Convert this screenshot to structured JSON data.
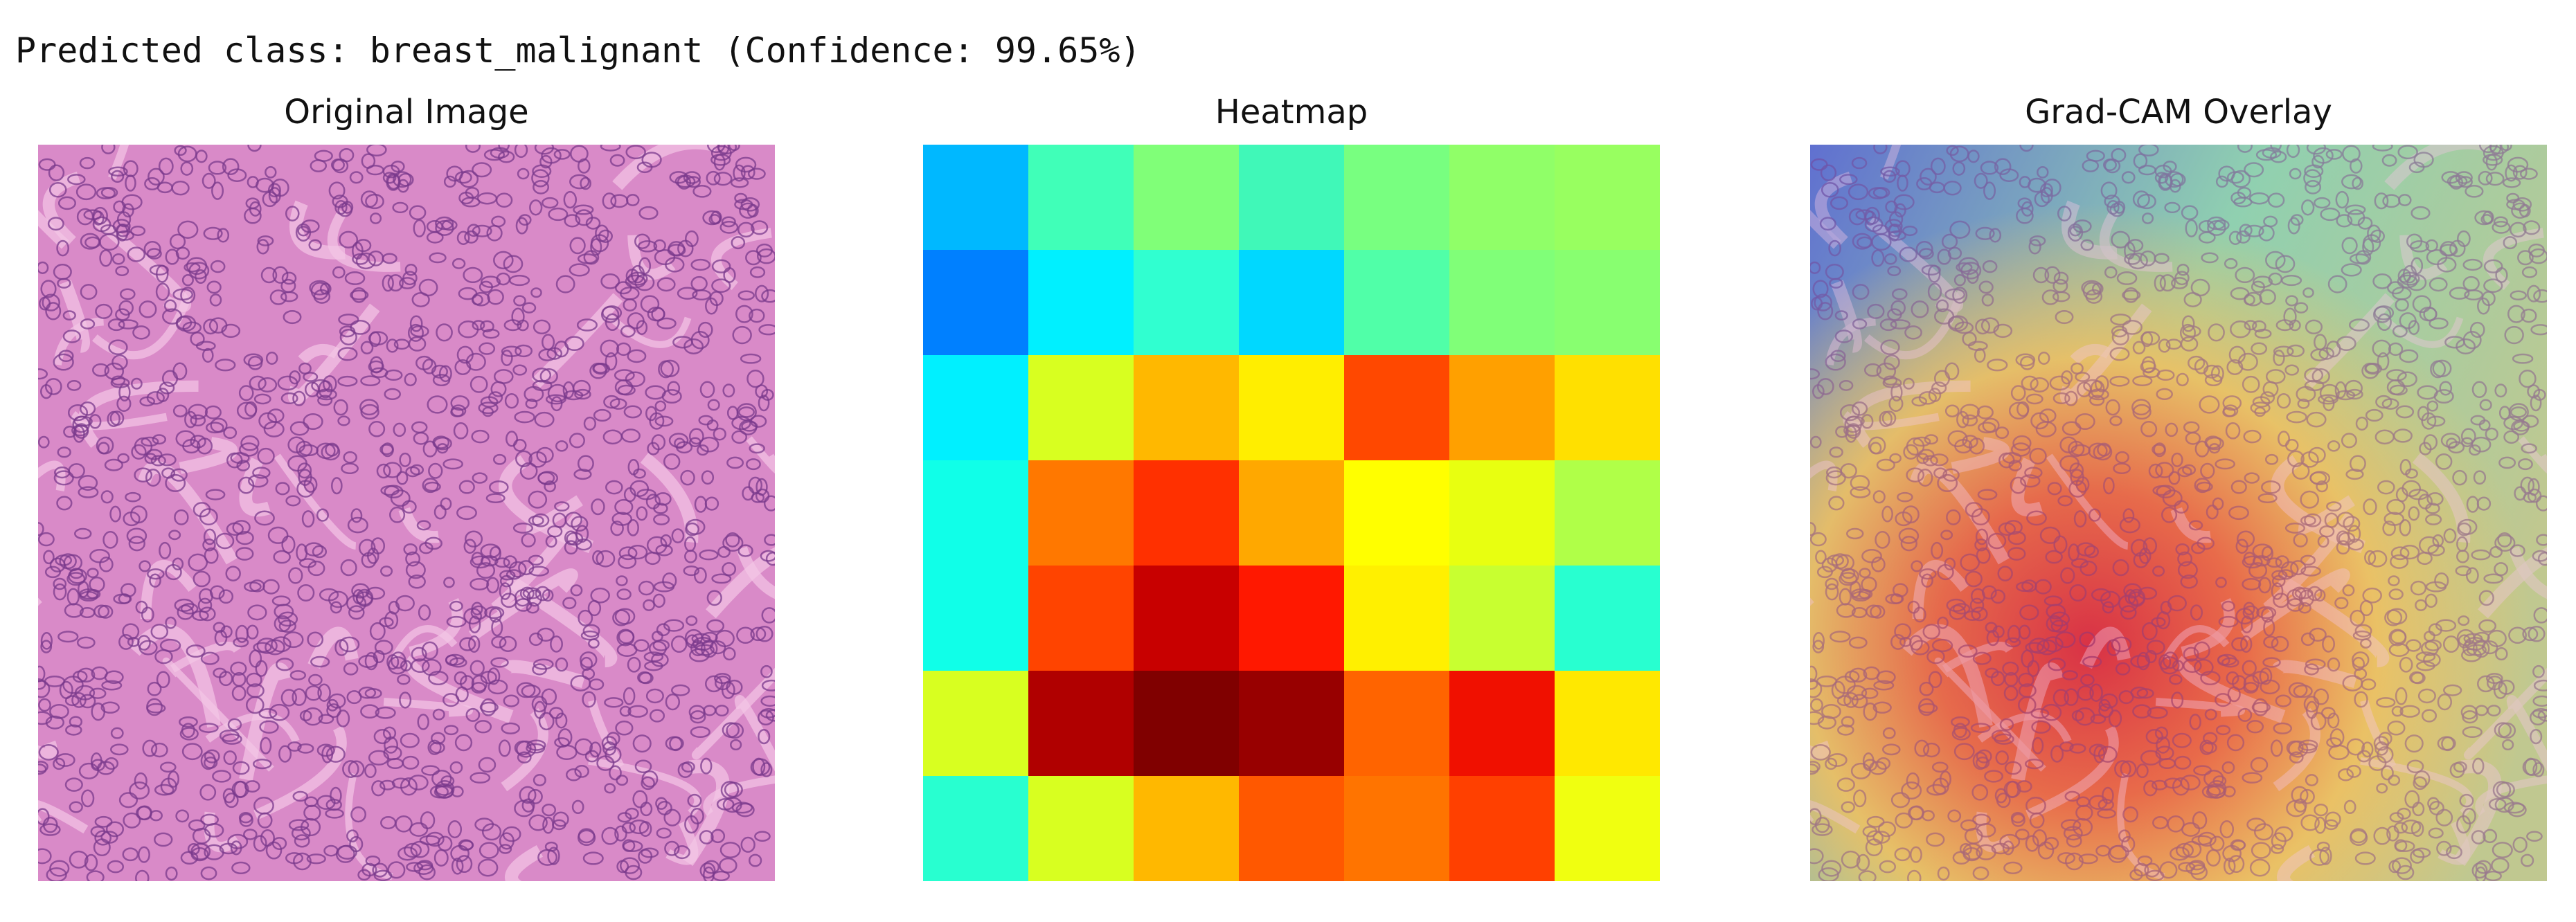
{
  "output": {
    "prediction": "Predicted class: breast_malignant (Confidence: 99.65%)"
  },
  "panels": [
    {
      "title": "Original Image"
    },
    {
      "title": "Heatmap"
    },
    {
      "title": "Grad-CAM Overlay"
    }
  ]
}
